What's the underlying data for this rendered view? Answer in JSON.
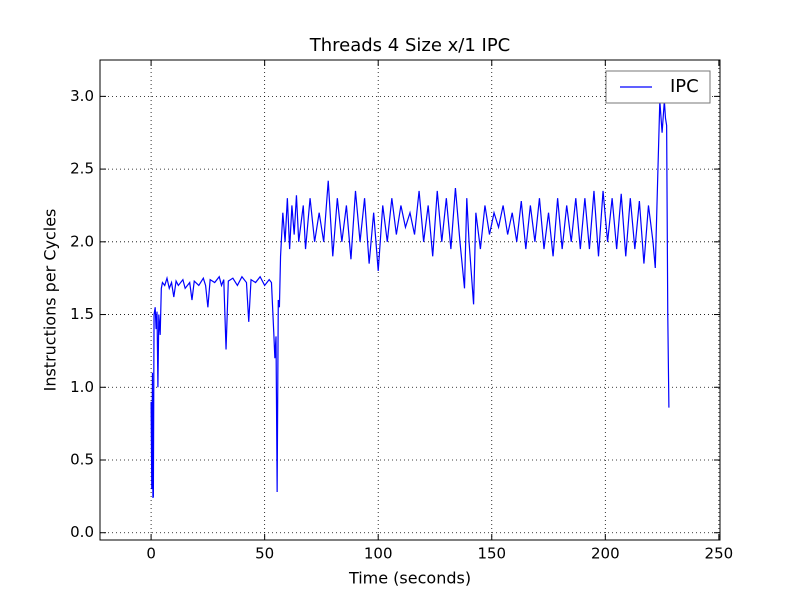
{
  "chart_data": {
    "type": "line",
    "title": "Threads 4 Size x/1 IPC",
    "xlabel": "Time (seconds)",
    "ylabel": "Instructions per Cycles",
    "x": [
      0,
      0.3,
      0.6,
      0.8,
      1.0,
      1.3,
      1.8,
      2.2,
      2.6,
      3,
      3.4,
      4,
      4.5,
      5,
      6,
      7,
      8,
      9,
      10,
      11,
      12,
      14,
      15,
      17,
      18,
      19,
      21,
      23,
      24,
      25,
      26,
      28,
      30,
      31,
      32,
      33,
      34,
      36,
      38,
      40,
      42,
      43,
      44,
      46,
      48,
      50,
      52,
      53,
      54,
      54.5,
      55,
      55.5,
      56,
      56.5,
      57,
      58,
      59,
      60,
      61,
      62,
      63,
      64,
      65,
      67,
      68,
      70,
      72,
      74,
      76,
      78,
      80,
      82,
      84,
      86,
      88,
      90,
      92,
      94,
      96,
      98,
      100,
      102,
      104,
      106,
      108,
      110,
      112,
      114,
      116,
      118,
      120,
      122,
      124,
      126,
      128,
      130,
      132,
      134,
      136,
      138,
      139,
      140,
      142,
      143,
      145,
      147,
      149,
      151,
      153,
      155,
      157,
      159,
      161,
      163,
      165,
      167,
      169,
      171,
      173,
      175,
      177,
      179,
      181,
      183,
      185,
      187,
      189,
      191,
      193,
      195,
      197,
      199,
      201,
      203,
      205,
      207,
      209,
      211,
      213,
      215,
      217,
      219,
      221,
      222,
      223,
      224,
      225,
      226,
      226.5,
      227,
      227.5,
      228
    ],
    "series": [
      {
        "name": "IPC",
        "color": "#0000ff",
        "values": [
          0.9,
          0.3,
          1.1,
          0.24,
          0.25,
          1.5,
          1.55,
          1.4,
          1.52,
          1.0,
          1.5,
          1.36,
          1.68,
          1.72,
          1.7,
          1.75,
          1.68,
          1.72,
          1.62,
          1.73,
          1.7,
          1.74,
          1.68,
          1.72,
          1.6,
          1.73,
          1.7,
          1.75,
          1.7,
          1.55,
          1.74,
          1.72,
          1.76,
          1.7,
          1.74,
          1.26,
          1.73,
          1.75,
          1.7,
          1.76,
          1.72,
          1.45,
          1.74,
          1.72,
          1.76,
          1.7,
          1.74,
          1.72,
          1.38,
          1.2,
          1.35,
          0.28,
          1.6,
          1.55,
          1.9,
          2.2,
          2.0,
          2.3,
          1.95,
          2.25,
          2.05,
          2.32,
          2.0,
          2.25,
          1.95,
          2.3,
          2.0,
          2.2,
          2.0,
          2.42,
          1.9,
          2.3,
          2.0,
          2.25,
          1.88,
          2.35,
          2.0,
          2.3,
          1.85,
          2.2,
          1.8,
          2.25,
          2.0,
          2.3,
          2.05,
          2.25,
          2.1,
          2.2,
          2.05,
          2.35,
          2.0,
          2.25,
          1.9,
          2.35,
          2.0,
          2.3,
          1.95,
          2.37,
          2.0,
          1.68,
          2.3,
          2.0,
          1.57,
          2.2,
          1.95,
          2.25,
          2.05,
          2.2,
          2.1,
          2.25,
          2.05,
          2.2,
          2.0,
          2.28,
          1.95,
          2.25,
          2.0,
          2.3,
          1.95,
          2.2,
          1.9,
          2.3,
          1.95,
          2.25,
          2.0,
          2.3,
          1.95,
          2.3,
          1.95,
          2.35,
          1.9,
          2.35,
          2.0,
          2.3,
          1.95,
          2.33,
          1.9,
          2.3,
          1.95,
          2.28,
          1.85,
          2.25,
          2.0,
          1.82,
          2.4,
          2.97,
          2.75,
          2.97,
          2.85,
          2.8,
          1.5,
          0.86
        ]
      }
    ],
    "xlim": [
      -22.5,
      250.5
    ],
    "ylim": [
      -0.05,
      3.25
    ],
    "xticks": [
      0,
      50,
      100,
      150,
      200,
      250
    ],
    "yticks": [
      {
        "value": 0,
        "label": "0.0"
      },
      0.5,
      {
        "value": 1,
        "label": "1.0"
      },
      1.5,
      {
        "value": 2,
        "label": "2.0"
      },
      2.5,
      {
        "value": 3,
        "label": "3.0"
      }
    ],
    "grid": true,
    "legend": "upper right"
  }
}
